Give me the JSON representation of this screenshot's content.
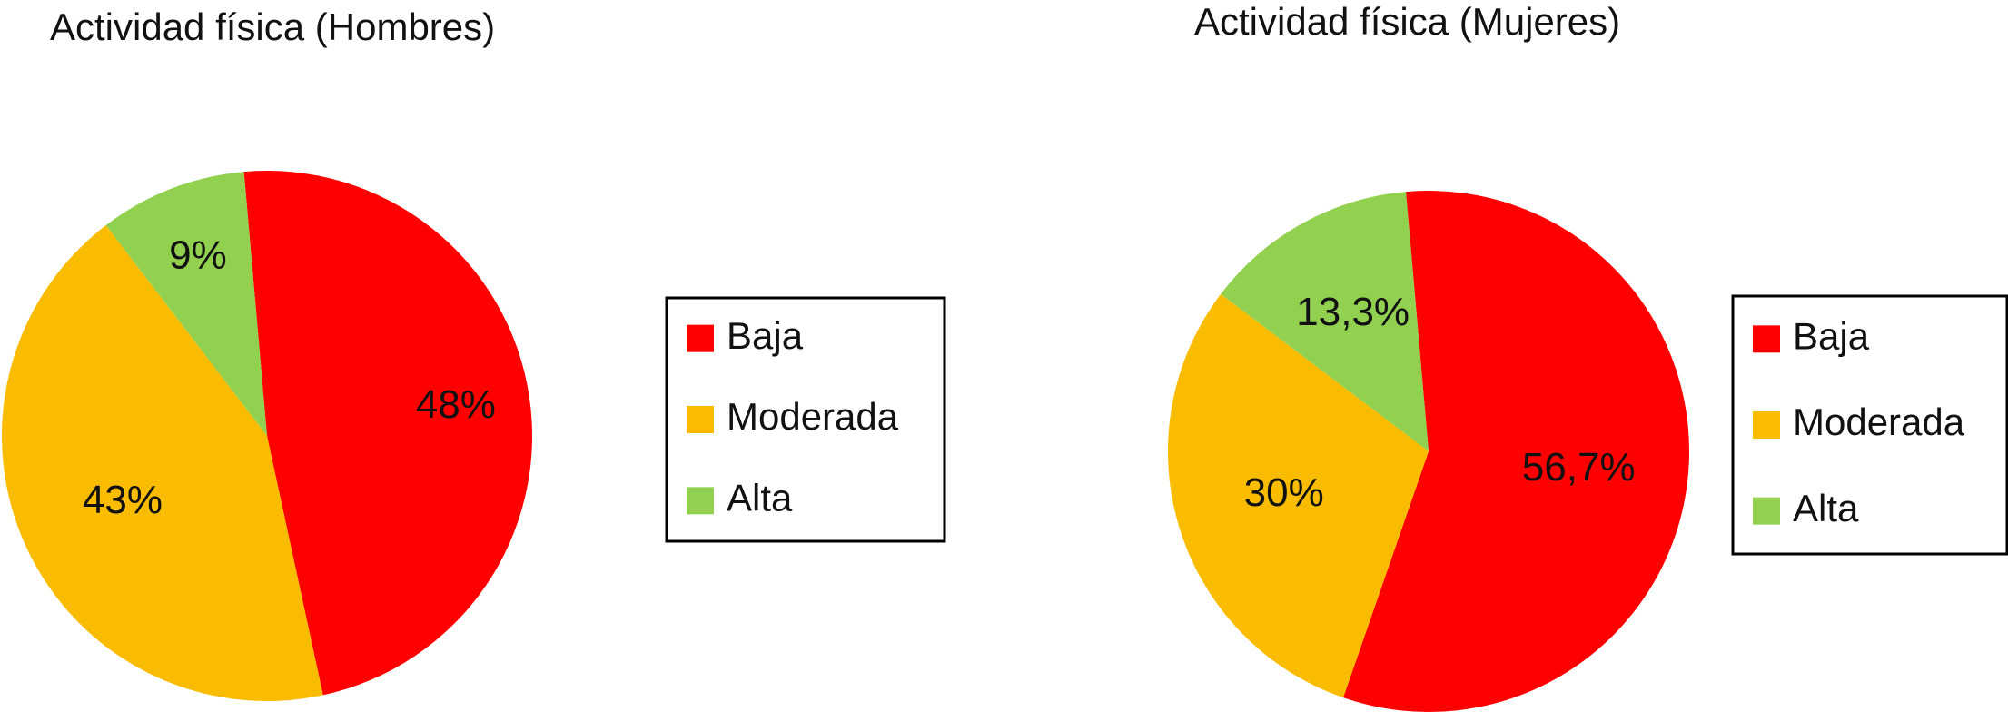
{
  "colors": {
    "baja": "#FF0000",
    "moderada": "#F9BC00",
    "alta": "#92D050",
    "text": "#111111",
    "legend_border": "#000000"
  },
  "chart_data": [
    {
      "type": "pie",
      "title": "Actividad física (Hombres)",
      "categories": [
        "Baja",
        "Moderada",
        "Alta"
      ],
      "values": [
        48,
        43,
        9
      ],
      "data_labels": [
        "48%",
        "43%",
        "9%"
      ],
      "legend": [
        "Baja",
        "Moderada",
        "Alta"
      ],
      "legend_placement": "right",
      "start_angle_deg": -5
    },
    {
      "type": "pie",
      "title": "Actividad física (Mujeres)",
      "categories": [
        "Baja",
        "Moderada",
        "Alta"
      ],
      "values": [
        56.7,
        30,
        13.3
      ],
      "data_labels": [
        "56,7%",
        "30%",
        "13,3%"
      ],
      "legend": [
        "Baja",
        "Moderada",
        "Alta"
      ],
      "legend_placement": "right",
      "start_angle_deg": -5
    }
  ]
}
